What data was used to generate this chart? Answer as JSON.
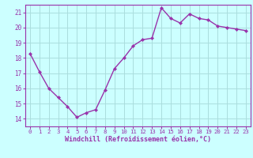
{
  "x": [
    0,
    1,
    2,
    3,
    4,
    5,
    6,
    7,
    8,
    9,
    10,
    11,
    12,
    13,
    14,
    15,
    16,
    17,
    18,
    19,
    20,
    21,
    22,
    23
  ],
  "y": [
    18.3,
    17.1,
    16.0,
    15.4,
    14.8,
    14.1,
    14.4,
    14.6,
    15.9,
    17.3,
    18.0,
    18.8,
    19.2,
    19.3,
    21.3,
    20.6,
    20.3,
    20.9,
    20.6,
    20.5,
    20.1,
    20.0,
    19.9,
    19.8
  ],
  "xlim": [
    -0.5,
    23.5
  ],
  "ylim": [
    13.5,
    21.5
  ],
  "yticks": [
    14,
    15,
    16,
    17,
    18,
    19,
    20,
    21
  ],
  "xticks": [
    0,
    1,
    2,
    3,
    4,
    5,
    6,
    7,
    8,
    9,
    10,
    11,
    12,
    13,
    14,
    15,
    16,
    17,
    18,
    19,
    20,
    21,
    22,
    23
  ],
  "xlabel": "Windchill (Refroidissement éolien,°C)",
  "line_color": "#9933AA",
  "marker_color": "#9933AA",
  "bg_color": "#CCFFFF",
  "grid_color": "#AADDDD",
  "axis_color": "#9933AA",
  "tick_color": "#9933AA",
  "label_color": "#9933AA"
}
